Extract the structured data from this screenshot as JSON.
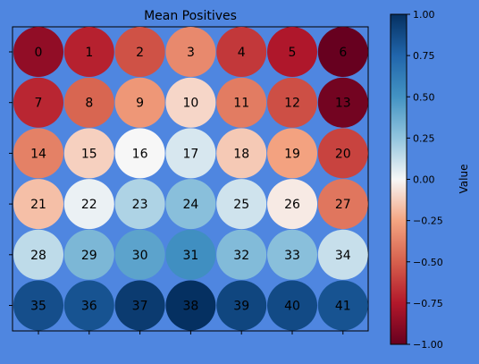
{
  "chart_data": {
    "type": "heatmap",
    "title": "Mean Positives",
    "colorbar": {
      "label": "Value",
      "range": [
        -1.0,
        1.0
      ],
      "ticks": [
        "1.00",
        "0.75",
        "0.50",
        "0.25",
        "0.00",
        "−0.25",
        "−0.50",
        "−0.75",
        "−1.00"
      ],
      "tick_values": [
        1.0,
        0.75,
        0.5,
        0.25,
        0.0,
        -0.25,
        -0.5,
        -0.75,
        -1.0
      ],
      "colormap": "RdBu"
    },
    "rows": 6,
    "cols": 7,
    "cells": [
      {
        "label": "0",
        "value": -0.86
      },
      {
        "label": "1",
        "value": -0.72
      },
      {
        "label": "2",
        "value": -0.55
      },
      {
        "label": "3",
        "value": -0.35
      },
      {
        "label": "4",
        "value": -0.64
      },
      {
        "label": "5",
        "value": -0.76
      },
      {
        "label": "6",
        "value": -1.0
      },
      {
        "label": "7",
        "value": -0.7
      },
      {
        "label": "8",
        "value": -0.48
      },
      {
        "label": "9",
        "value": -0.3
      },
      {
        "label": "10",
        "value": -0.1
      },
      {
        "label": "11",
        "value": -0.4
      },
      {
        "label": "12",
        "value": -0.56
      },
      {
        "label": "13",
        "value": -0.96
      },
      {
        "label": "14",
        "value": -0.38
      },
      {
        "label": "15",
        "value": -0.12
      },
      {
        "label": "16",
        "value": 0.0
      },
      {
        "label": "17",
        "value": 0.08
      },
      {
        "label": "18",
        "value": -0.14
      },
      {
        "label": "19",
        "value": -0.26
      },
      {
        "label": "20",
        "value": -0.6
      },
      {
        "label": "21",
        "value": -0.17
      },
      {
        "label": "22",
        "value": 0.03
      },
      {
        "label": "23",
        "value": 0.18
      },
      {
        "label": "24",
        "value": 0.28
      },
      {
        "label": "25",
        "value": 0.1
      },
      {
        "label": "26",
        "value": -0.04
      },
      {
        "label": "27",
        "value": -0.42
      },
      {
        "label": "28",
        "value": 0.14
      },
      {
        "label": "29",
        "value": 0.32
      },
      {
        "label": "30",
        "value": 0.42
      },
      {
        "label": "31",
        "value": 0.52
      },
      {
        "label": "32",
        "value": 0.3
      },
      {
        "label": "33",
        "value": 0.28
      },
      {
        "label": "34",
        "value": 0.12
      },
      {
        "label": "35",
        "value": 0.86
      },
      {
        "label": "36",
        "value": 0.84
      },
      {
        "label": "37",
        "value": 0.95
      },
      {
        "label": "38",
        "value": 1.0
      },
      {
        "label": "39",
        "value": 0.9
      },
      {
        "label": "40",
        "value": 0.88
      },
      {
        "label": "41",
        "value": 0.84
      }
    ]
  }
}
